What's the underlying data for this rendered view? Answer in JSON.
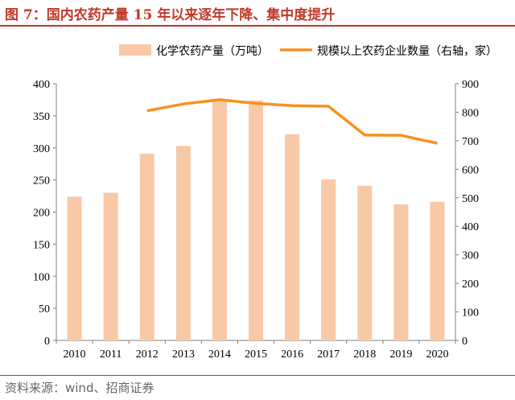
{
  "title": "图 7：国内农药产量 15 年以来逐年下降、集中度提升",
  "source": "资料来源：wind、招商证券",
  "colors": {
    "bar": "#f8c9a7",
    "line": "#f7921e",
    "title": "#c0392b"
  },
  "chart_data": {
    "type": "bar+line",
    "categories": [
      "2010",
      "2011",
      "2012",
      "2013",
      "2014",
      "2015",
      "2016",
      "2017",
      "2018",
      "2019",
      "2020"
    ],
    "series": [
      {
        "name": "化学农药产量（万吨）",
        "type": "bar",
        "axis": "left",
        "values": [
          224,
          230,
          291,
          303,
          375,
          374,
          321,
          251,
          241,
          212,
          216
        ]
      },
      {
        "name": "规模以上农药企业数量（右轴，家）",
        "type": "line",
        "axis": "right",
        "values": [
          null,
          null,
          805,
          829,
          844,
          831,
          823,
          821,
          720,
          719,
          691
        ]
      }
    ],
    "ylim_left": [
      0,
      400
    ],
    "yticks_left": [
      0,
      50,
      100,
      150,
      200,
      250,
      300,
      350,
      400
    ],
    "ylim_right": [
      0,
      900
    ],
    "yticks_right": [
      0,
      100,
      200,
      300,
      400,
      500,
      600,
      700,
      800,
      900
    ],
    "legend": "top",
    "grid": false
  }
}
